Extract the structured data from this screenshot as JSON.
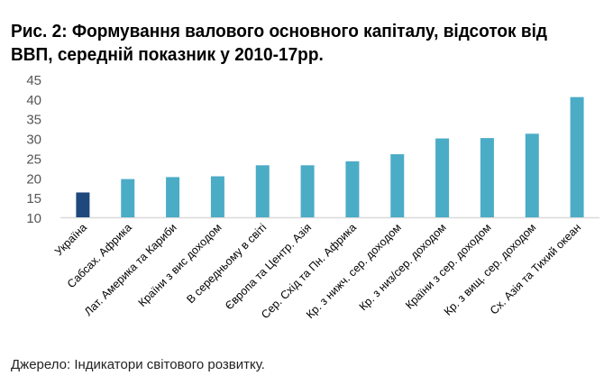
{
  "title": "Рис. 2: Формування валового основного капіталу, відсоток від ВВП, середній показник у 2010-17рр.",
  "source": "Джерело: Індикатори світового розвитку.",
  "chart_data": {
    "type": "bar",
    "title": "Рис. 2: Формування валового основного капіталу, відсоток від ВВП, середній показник у 2010-17рр.",
    "categories": [
      "Україна",
      "Сабсах. Африка",
      "Лат. Америка та Кариби",
      "Країни з вис доходом",
      "В середньому в світі",
      "Європа та Центр. Азія",
      "Сер. Схід та Пн. Африка",
      "Кр. з нижч. сер. доходом",
      "Кр. з низ/сер. доходом",
      "Країни з сер. доходом",
      "Кр. з вищ. сер. доходом",
      "Сх. Азія та Тихий океан"
    ],
    "values": [
      16.3,
      19.7,
      20.2,
      20.4,
      23.2,
      23.2,
      24.2,
      26.0,
      30.0,
      30.1,
      31.2,
      40.5
    ],
    "colors": [
      "#1f497d",
      "#4bacc6",
      "#4bacc6",
      "#4bacc6",
      "#4bacc6",
      "#4bacc6",
      "#4bacc6",
      "#4bacc6",
      "#4bacc6",
      "#4bacc6",
      "#4bacc6",
      "#4bacc6"
    ],
    "yticks": [
      10,
      15,
      20,
      25,
      30,
      35,
      40,
      45
    ],
    "ylim": [
      10,
      45
    ],
    "grid": false,
    "xlabel": "",
    "ylabel": ""
  }
}
